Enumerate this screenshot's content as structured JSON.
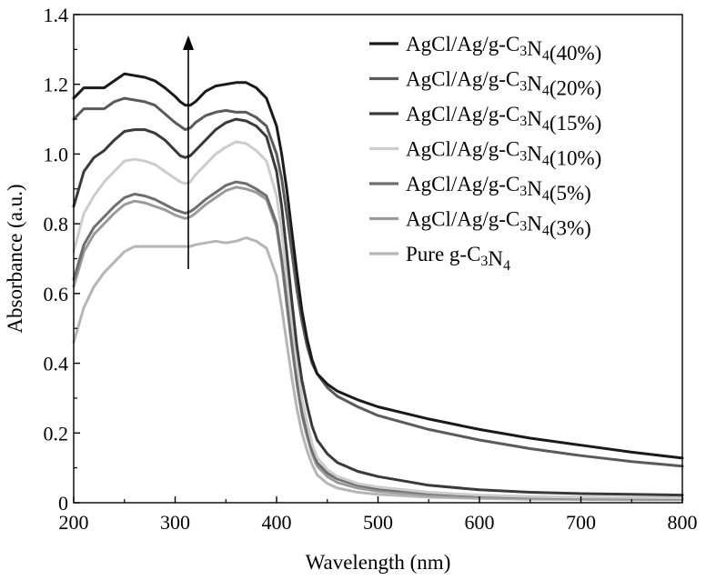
{
  "chart_data": {
    "type": "line",
    "title": "",
    "xlabel": "Wavelength (nm)",
    "ylabel": "Absorbance (a.u.)",
    "xlim": [
      200,
      800
    ],
    "ylim": [
      0,
      1.4
    ],
    "xticks": [
      200,
      300,
      400,
      500,
      600,
      700,
      800
    ],
    "yticks": [
      0,
      0.2,
      0.4,
      0.6,
      0.8,
      1.0,
      1.2,
      1.4
    ],
    "xtick_labels": [
      "200",
      "300",
      "400",
      "500",
      "600",
      "700",
      "800"
    ],
    "ytick_labels": [
      "0",
      "0.2",
      "0.4",
      "0.6",
      "0.8",
      "1.0",
      "1.2",
      "1.4"
    ],
    "grid": false,
    "legend_position": "top-right",
    "annotation": {
      "type": "arrow",
      "x": 313,
      "y_from": 0.67,
      "y_to": 1.34
    },
    "series": [
      {
        "name": "AgCl/Ag/g-C3N4(40%)",
        "label_parts": [
          "AgCl/Ag/g-C",
          "3",
          "N",
          "4",
          "(40%)"
        ],
        "color": "#1a1a1a",
        "x": [
          200,
          210,
          220,
          230,
          240,
          250,
          260,
          270,
          280,
          290,
          300,
          305,
          310,
          315,
          320,
          330,
          340,
          350,
          360,
          370,
          380,
          390,
          400,
          405,
          410,
          415,
          420,
          425,
          430,
          435,
          440,
          450,
          460,
          480,
          500,
          550,
          600,
          650,
          700,
          750,
          800
        ],
        "y": [
          1.16,
          1.19,
          1.19,
          1.19,
          1.21,
          1.23,
          1.225,
          1.22,
          1.21,
          1.19,
          1.165,
          1.15,
          1.14,
          1.14,
          1.15,
          1.18,
          1.195,
          1.2,
          1.205,
          1.205,
          1.19,
          1.16,
          1.08,
          1.0,
          0.9,
          0.78,
          0.66,
          0.55,
          0.47,
          0.41,
          0.37,
          0.34,
          0.32,
          0.295,
          0.275,
          0.24,
          0.21,
          0.185,
          0.165,
          0.145,
          0.128
        ]
      },
      {
        "name": "AgCl/Ag/g-C3N4(20%)",
        "label_parts": [
          "AgCl/Ag/g-C",
          "3",
          "N",
          "4",
          "(20%)"
        ],
        "color": "#5a5a5a",
        "x": [
          200,
          210,
          220,
          230,
          240,
          250,
          260,
          270,
          280,
          290,
          300,
          305,
          310,
          315,
          320,
          330,
          340,
          350,
          360,
          370,
          380,
          390,
          400,
          405,
          410,
          415,
          420,
          425,
          430,
          435,
          440,
          450,
          460,
          480,
          500,
          550,
          600,
          650,
          700,
          750,
          800
        ],
        "y": [
          1.1,
          1.13,
          1.13,
          1.13,
          1.15,
          1.16,
          1.155,
          1.15,
          1.14,
          1.115,
          1.09,
          1.08,
          1.07,
          1.075,
          1.09,
          1.11,
          1.12,
          1.125,
          1.12,
          1.12,
          1.105,
          1.08,
          1.0,
          0.93,
          0.83,
          0.72,
          0.61,
          0.52,
          0.45,
          0.4,
          0.37,
          0.33,
          0.305,
          0.275,
          0.25,
          0.21,
          0.18,
          0.155,
          0.135,
          0.118,
          0.105
        ]
      },
      {
        "name": "AgCl/Ag/g-C3N4(15%)",
        "label_parts": [
          "AgCl/Ag/g-C",
          "3",
          "N",
          "4",
          "(15%)"
        ],
        "color": "#3a3a3a",
        "x": [
          200,
          210,
          220,
          230,
          240,
          250,
          260,
          270,
          280,
          290,
          300,
          305,
          310,
          315,
          320,
          330,
          340,
          350,
          360,
          370,
          380,
          390,
          400,
          405,
          410,
          415,
          420,
          425,
          430,
          435,
          440,
          450,
          460,
          480,
          500,
          550,
          600,
          650,
          700,
          750,
          800
        ],
        "y": [
          0.85,
          0.95,
          0.99,
          1.01,
          1.04,
          1.065,
          1.07,
          1.07,
          1.06,
          1.04,
          1.01,
          0.995,
          0.99,
          0.995,
          1.01,
          1.04,
          1.07,
          1.09,
          1.1,
          1.095,
          1.08,
          1.05,
          0.95,
          0.85,
          0.72,
          0.58,
          0.45,
          0.35,
          0.28,
          0.22,
          0.18,
          0.14,
          0.115,
          0.09,
          0.075,
          0.05,
          0.037,
          0.03,
          0.026,
          0.024,
          0.022
        ]
      },
      {
        "name": "AgCl/Ag/g-C3N4(10%)",
        "label_parts": [
          "AgCl/Ag/g-C",
          "3",
          "N",
          "4",
          "(10%)"
        ],
        "color": "#cccccc",
        "x": [
          200,
          210,
          220,
          230,
          240,
          250,
          260,
          270,
          280,
          290,
          300,
          305,
          310,
          315,
          320,
          330,
          340,
          350,
          360,
          370,
          380,
          390,
          400,
          405,
          410,
          415,
          420,
          425,
          430,
          435,
          440,
          450,
          460,
          480,
          500,
          550,
          600,
          650,
          700,
          750,
          800
        ],
        "y": [
          0.72,
          0.83,
          0.88,
          0.92,
          0.95,
          0.98,
          0.985,
          0.98,
          0.97,
          0.95,
          0.93,
          0.92,
          0.915,
          0.92,
          0.94,
          0.97,
          1.0,
          1.02,
          1.035,
          1.03,
          1.01,
          0.98,
          0.88,
          0.78,
          0.65,
          0.52,
          0.4,
          0.3,
          0.23,
          0.17,
          0.13,
          0.095,
          0.075,
          0.055,
          0.045,
          0.03,
          0.022,
          0.018,
          0.016,
          0.015,
          0.014
        ]
      },
      {
        "name": "AgCl/Ag/g-C3N4(5%)",
        "label_parts": [
          "AgCl/Ag/g-C",
          "3",
          "N",
          "4",
          "(5%)"
        ],
        "color": "#6e6e6e",
        "x": [
          200,
          210,
          220,
          230,
          240,
          250,
          260,
          270,
          280,
          290,
          300,
          305,
          310,
          315,
          320,
          330,
          340,
          350,
          360,
          370,
          380,
          390,
          400,
          405,
          410,
          415,
          420,
          425,
          430,
          435,
          440,
          450,
          460,
          480,
          500,
          550,
          600,
          650,
          700,
          750,
          800
        ],
        "y": [
          0.64,
          0.74,
          0.79,
          0.82,
          0.85,
          0.875,
          0.885,
          0.88,
          0.87,
          0.855,
          0.84,
          0.835,
          0.83,
          0.835,
          0.845,
          0.87,
          0.89,
          0.91,
          0.92,
          0.915,
          0.9,
          0.88,
          0.8,
          0.7,
          0.58,
          0.46,
          0.35,
          0.26,
          0.2,
          0.15,
          0.115,
          0.085,
          0.068,
          0.05,
          0.04,
          0.027,
          0.02,
          0.017,
          0.015,
          0.014,
          0.013
        ]
      },
      {
        "name": "AgCl/Ag/g-C3N4(3%)",
        "label_parts": [
          "AgCl/Ag/g-C",
          "3",
          "N",
          "4",
          "(3%)"
        ],
        "color": "#9a9a9a",
        "x": [
          200,
          210,
          220,
          230,
          240,
          250,
          260,
          270,
          280,
          290,
          300,
          305,
          310,
          315,
          320,
          330,
          340,
          350,
          360,
          370,
          380,
          390,
          400,
          405,
          410,
          415,
          420,
          425,
          430,
          435,
          440,
          450,
          460,
          480,
          500,
          550,
          600,
          650,
          700,
          750,
          800
        ],
        "y": [
          0.62,
          0.72,
          0.77,
          0.8,
          0.83,
          0.855,
          0.865,
          0.86,
          0.85,
          0.84,
          0.825,
          0.82,
          0.815,
          0.82,
          0.83,
          0.855,
          0.875,
          0.895,
          0.905,
          0.9,
          0.89,
          0.87,
          0.79,
          0.69,
          0.57,
          0.45,
          0.34,
          0.25,
          0.19,
          0.14,
          0.105,
          0.075,
          0.058,
          0.042,
          0.033,
          0.022,
          0.016,
          0.013,
          0.011,
          0.01,
          0.01
        ]
      },
      {
        "name": "Pure g-C3N4",
        "label_parts": [
          "Pure g-C",
          "3",
          "N",
          "4",
          ""
        ],
        "color": "#b5b5b5",
        "x": [
          200,
          210,
          220,
          230,
          240,
          250,
          260,
          270,
          280,
          290,
          300,
          305,
          310,
          315,
          320,
          330,
          340,
          350,
          360,
          370,
          380,
          390,
          400,
          405,
          410,
          415,
          420,
          425,
          430,
          435,
          440,
          450,
          460,
          480,
          500,
          550,
          600,
          650,
          700,
          750,
          800
        ],
        "y": [
          0.46,
          0.56,
          0.62,
          0.66,
          0.69,
          0.72,
          0.735,
          0.735,
          0.735,
          0.735,
          0.735,
          0.735,
          0.735,
          0.735,
          0.74,
          0.745,
          0.75,
          0.745,
          0.75,
          0.76,
          0.75,
          0.73,
          0.65,
          0.56,
          0.46,
          0.36,
          0.27,
          0.2,
          0.15,
          0.11,
          0.08,
          0.055,
          0.042,
          0.03,
          0.024,
          0.016,
          0.012,
          0.01,
          0.009,
          0.008,
          0.008
        ]
      }
    ]
  }
}
